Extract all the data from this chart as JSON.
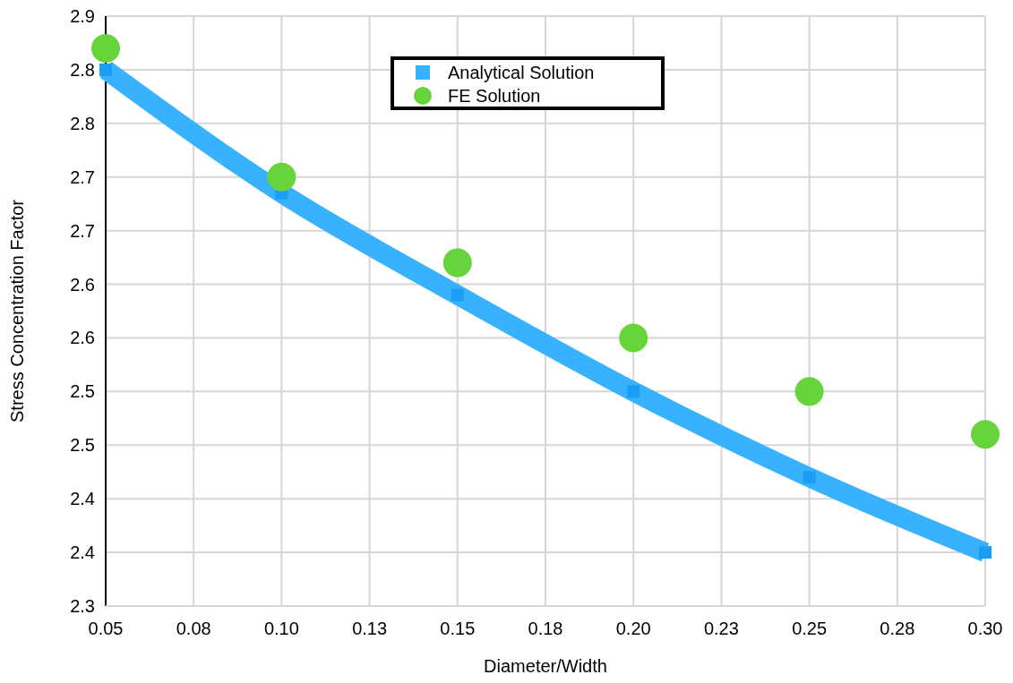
{
  "chart_data": {
    "type": "line",
    "xlabel": "Diameter/Width",
    "ylabel": "Stress Concentration Factor",
    "x": [
      0.05,
      0.1,
      0.15,
      0.2,
      0.25,
      0.3
    ],
    "series": [
      {
        "name": "Analytical Solution",
        "color": "#38b2fc",
        "marker": "square",
        "values": [
          2.8,
          2.685,
          2.59,
          2.5,
          2.42,
          2.35
        ]
      },
      {
        "name": "FE Solution",
        "type": "scatter",
        "color": "#66d43a",
        "marker": "circle",
        "values": [
          2.82,
          2.7,
          2.62,
          2.55,
          2.5,
          2.46
        ]
      }
    ],
    "xlim": [
      0.05,
      0.3
    ],
    "xticks": [
      0.05,
      {
        "value": 0.075,
        "label": "0.08"
      },
      {
        "value": 0.1,
        "label": "0.10"
      },
      {
        "value": 0.125,
        "label": "0.13"
      },
      0.15,
      {
        "value": 0.175,
        "label": "0.18"
      },
      {
        "value": 0.2,
        "label": "0.20"
      },
      {
        "value": 0.225,
        "label": "0.23"
      },
      0.25,
      {
        "value": 0.275,
        "label": "0.28"
      },
      {
        "value": 0.3,
        "label": "0.30"
      }
    ],
    "ylim": [
      2.3,
      2.85
    ],
    "yticks": [
      2.3,
      {
        "value": 2.35,
        "label": "2.4"
      },
      2.4,
      {
        "value": 2.45,
        "label": "2.5"
      },
      2.5,
      {
        "value": 2.55,
        "label": "2.6"
      },
      2.6,
      {
        "value": 2.65,
        "label": "2.7"
      },
      2.7,
      {
        "value": 2.75,
        "label": "2.8"
      },
      2.8,
      {
        "value": 2.85,
        "label": "2.9"
      }
    ],
    "grid": true,
    "legend": "top"
  }
}
